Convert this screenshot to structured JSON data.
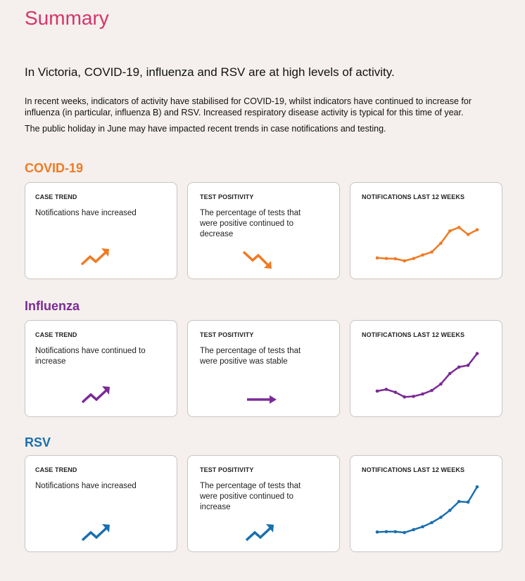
{
  "page": {
    "title": "Summary",
    "headline": "In Victoria, COVID-19, influenza and RSV are at high levels of activity.",
    "paragraph1": "In recent weeks, indicators of activity have stabilised for COVID-19, whilst indicators have continued to increase for influenza (in particular, influenza B) and RSV. Increased respiratory disease activity is typical for this time of year.",
    "paragraph2": "The public holiday in June may have impacted recent trends in case notifications and testing."
  },
  "sections": [
    {
      "name": "COVID-19",
      "color": "#f07a22",
      "case_trend": {
        "label": "CASE TREND",
        "text": "Notifications have increased",
        "icon": "trend-up-icon"
      },
      "test_positivity": {
        "label": "TEST POSITIVITY",
        "text": "The percentage of tests that were positive continued to decrease",
        "icon": "trend-down-icon"
      },
      "notifications": {
        "label": "NOTIFICATIONS LAST 12 WEEKS"
      }
    },
    {
      "name": "Influenza",
      "color": "#7b2a96",
      "case_trend": {
        "label": "CASE TREND",
        "text": "Notifications have continued to increase",
        "icon": "trend-up-icon"
      },
      "test_positivity": {
        "label": "TEST POSITIVITY",
        "text": "The percentage of tests that were positive was stable",
        "icon": "arrow-right-icon"
      },
      "notifications": {
        "label": "NOTIFICATIONS LAST 12 WEEKS"
      }
    },
    {
      "name": "RSV",
      "color": "#1a6fae",
      "case_trend": {
        "label": "CASE TREND",
        "text": "Notifications have increased",
        "icon": "trend-up-icon"
      },
      "test_positivity": {
        "label": "TEST POSITIVITY",
        "text": "The percentage of tests that were positive continued to increase",
        "icon": "trend-up-icon"
      },
      "notifications": {
        "label": "NOTIFICATIONS LAST 12 WEEKS"
      }
    }
  ],
  "chart_data": [
    {
      "type": "line",
      "series": [
        {
          "values": [
            10,
            9,
            8.5,
            5,
            9,
            15,
            20,
            35,
            56,
            62,
            50,
            58
          ]
        }
      ]
    },
    {
      "type": "line",
      "series": [
        {
          "values": [
            18,
            21,
            16,
            8,
            9,
            13,
            19,
            30,
            48,
            59,
            62,
            82
          ]
        }
      ]
    },
    {
      "type": "line",
      "series": [
        {
          "values": [
            8,
            8.5,
            8.5,
            7,
            12,
            17,
            24,
            33,
            45,
            60,
            59,
            85
          ]
        }
      ]
    }
  ]
}
